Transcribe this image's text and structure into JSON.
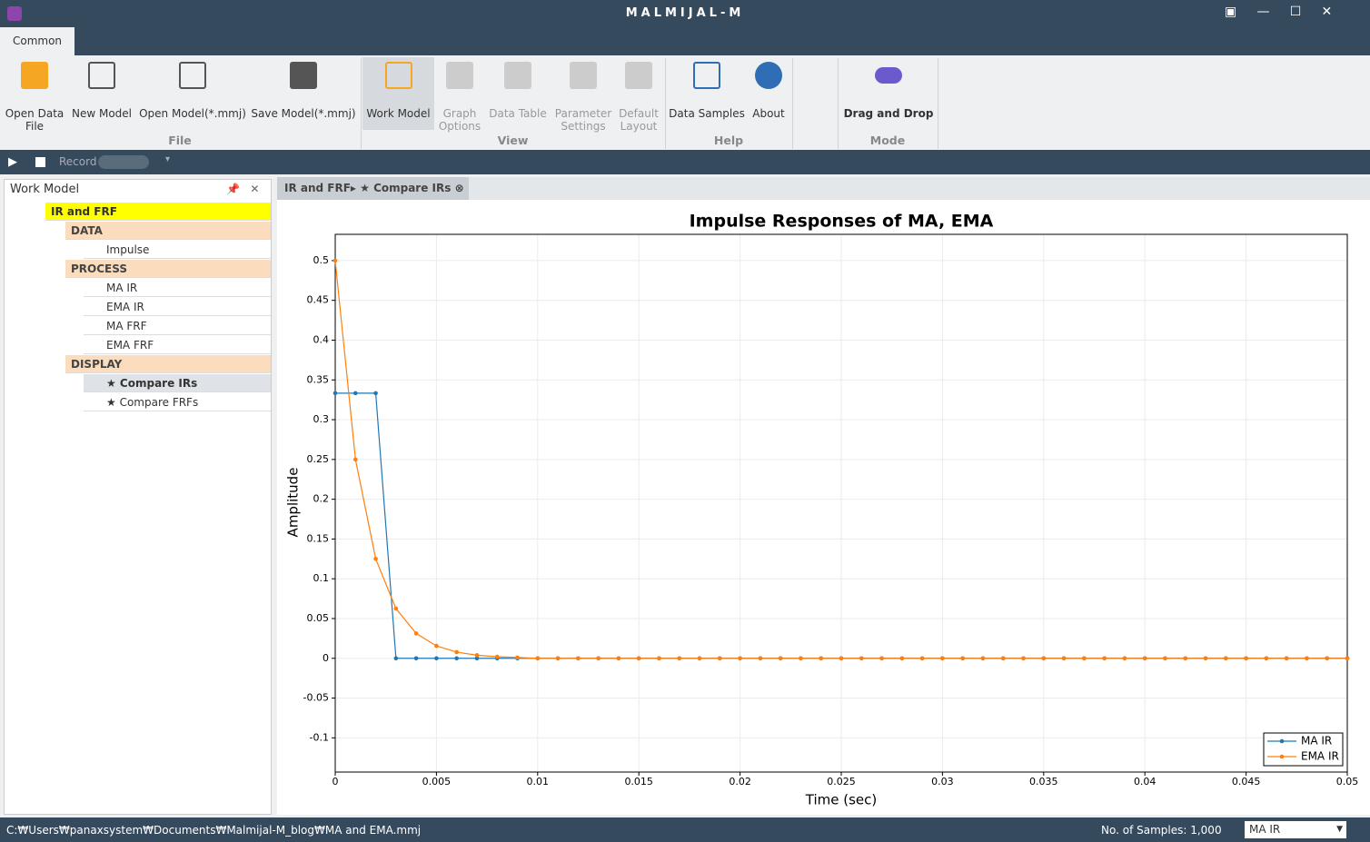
{
  "window": {
    "title": "MALMIJAL-M"
  },
  "ribbon": {
    "tab": "Common",
    "groups": [
      {
        "name": "File",
        "buttons": [
          "Open Data File",
          "New Model",
          "Open Model(*.mmj)",
          "Save Model(*.mmj)"
        ]
      },
      {
        "name": "View",
        "buttons": [
          "Work Model",
          "Graph Options",
          "Data Table",
          "Parameter Settings",
          "Default Layout"
        ]
      },
      {
        "name": "Help",
        "buttons": [
          "Data Samples",
          "About"
        ]
      },
      {
        "name": "Mode",
        "buttons": [
          "Drag and Drop"
        ]
      }
    ]
  },
  "toolbar": {
    "record": "Record"
  },
  "work_model": {
    "title": "Work Model",
    "items": [
      "IR and FRF",
      "DATA",
      "Impulse",
      "PROCESS",
      "MA IR",
      "EMA IR",
      "MA FRF",
      "EMA FRF",
      "DISPLAY",
      "★ Compare IRs",
      "★ Compare FRFs"
    ]
  },
  "document": {
    "tab": "IR and FRF▸ ★ Compare IRs"
  },
  "chart_data": {
    "type": "line",
    "title": "Impulse Responses of MA, EMA",
    "x_label": "Time (sec)",
    "y_label": "Amplitude",
    "x": [
      0,
      0.001,
      0.002,
      0.003,
      0.004,
      0.005,
      0.006,
      0.007,
      0.008,
      0.009,
      0.01,
      0.011,
      0.012,
      0.013,
      0.014,
      0.015,
      0.016,
      0.017,
      0.018,
      0.019,
      0.02,
      0.021,
      0.022,
      0.023,
      0.024,
      0.025,
      0.026,
      0.027,
      0.028,
      0.029,
      0.03,
      0.031,
      0.032,
      0.033,
      0.034,
      0.035,
      0.036,
      0.037,
      0.038,
      0.039,
      0.04,
      0.041,
      0.042,
      0.043,
      0.044,
      0.045,
      0.046,
      0.047,
      0.048,
      0.049,
      0.05
    ],
    "series": [
      {
        "name": "MA IR",
        "color": "#1f77b4",
        "values": [
          0.3333,
          0.3333,
          0.3333,
          0,
          0,
          0,
          0,
          0,
          0,
          0,
          0,
          0,
          0,
          0,
          0,
          0,
          0,
          0,
          0,
          0,
          0,
          0,
          0,
          0,
          0,
          0,
          0,
          0,
          0,
          0,
          0,
          0,
          0,
          0,
          0,
          0,
          0,
          0,
          0,
          0,
          0,
          0,
          0,
          0,
          0,
          0,
          0,
          0,
          0,
          0,
          0
        ]
      },
      {
        "name": "EMA IR",
        "color": "#ff7f0e",
        "values": [
          0.5,
          0.25,
          0.125,
          0.0625,
          0.03125,
          0.015625,
          0.0078,
          0.0039,
          0.002,
          0.001,
          0,
          0,
          0,
          0,
          0,
          0,
          0,
          0,
          0,
          0,
          0,
          0,
          0,
          0,
          0,
          0,
          0,
          0,
          0,
          0,
          0,
          0,
          0,
          0,
          0,
          0,
          0,
          0,
          0,
          0,
          0,
          0,
          0,
          0,
          0,
          0,
          0,
          0,
          0,
          0,
          0
        ]
      }
    ],
    "xlim": [
      0,
      0.05
    ],
    "xticks": [
      0,
      0.005,
      0.01,
      0.015,
      0.02,
      0.025,
      0.03,
      0.035,
      0.04,
      0.045,
      0.05
    ],
    "ylim": [
      -0.143,
      0.533
    ],
    "yticks": [
      -0.1,
      -0.05,
      0,
      0.05,
      0.1,
      0.15,
      0.2,
      0.25,
      0.3,
      0.35,
      0.4,
      0.45,
      0.5
    ],
    "grid": true,
    "legend": "lower right"
  },
  "status": {
    "path": "C:₩Users₩panaxsystem₩Documents₩Malmijal-M_blog₩MA and EMA.mmj",
    "samples": "No. of Samples: 1,000",
    "selector": "MA IR"
  }
}
